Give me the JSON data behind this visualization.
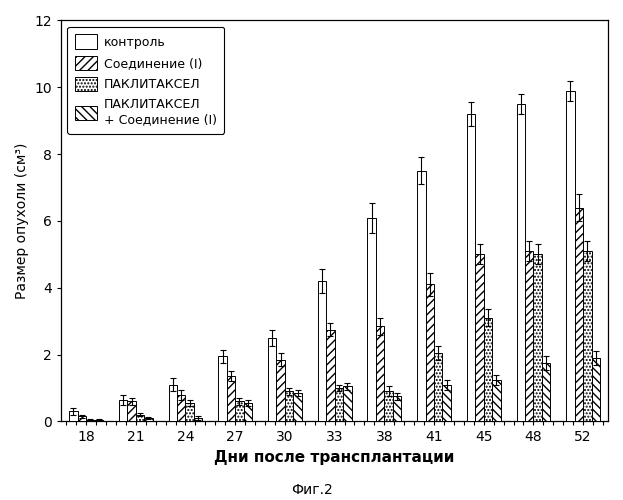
{
  "days": [
    18,
    21,
    24,
    27,
    30,
    33,
    38,
    41,
    45,
    48,
    52
  ],
  "control": [
    0.3,
    0.65,
    1.1,
    1.95,
    2.5,
    4.2,
    6.1,
    7.5,
    9.2,
    9.5,
    9.9
  ],
  "control_err": [
    0.1,
    0.15,
    0.2,
    0.2,
    0.25,
    0.35,
    0.45,
    0.4,
    0.35,
    0.3,
    0.3
  ],
  "compound1": [
    0.15,
    0.6,
    0.8,
    1.35,
    1.85,
    2.75,
    2.85,
    4.1,
    5.0,
    5.1,
    6.4
  ],
  "compound1_err": [
    0.05,
    0.1,
    0.15,
    0.15,
    0.2,
    0.2,
    0.25,
    0.35,
    0.3,
    0.3,
    0.4
  ],
  "paclitaxel": [
    0.05,
    0.2,
    0.55,
    0.6,
    0.9,
    1.0,
    0.9,
    2.05,
    3.1,
    5.0,
    5.1
  ],
  "paclitaxel_err": [
    0.02,
    0.05,
    0.1,
    0.1,
    0.1,
    0.1,
    0.15,
    0.2,
    0.25,
    0.3,
    0.3
  ],
  "combo": [
    0.05,
    0.1,
    0.1,
    0.55,
    0.85,
    1.05,
    0.75,
    1.1,
    1.25,
    1.75,
    1.9
  ],
  "combo_err": [
    0.02,
    0.03,
    0.05,
    0.1,
    0.1,
    0.1,
    0.1,
    0.15,
    0.15,
    0.2,
    0.2
  ],
  "xlabel": "Дни после трансплантации",
  "ylabel": "Размер опухоли (см³)",
  "caption": "Фиг.2",
  "legend_labels": [
    "контроль",
    "Соединение (I)",
    "ПАКЛИТАКСЕЛ",
    "ПАКЛИТАКСЕЛ\n+ Соединение (I)"
  ],
  "ylim": [
    0,
    12
  ],
  "yticks": [
    0,
    2,
    4,
    6,
    8,
    10,
    12
  ],
  "bar_width": 0.17,
  "background_color": "#ffffff",
  "edge_color": "#000000"
}
